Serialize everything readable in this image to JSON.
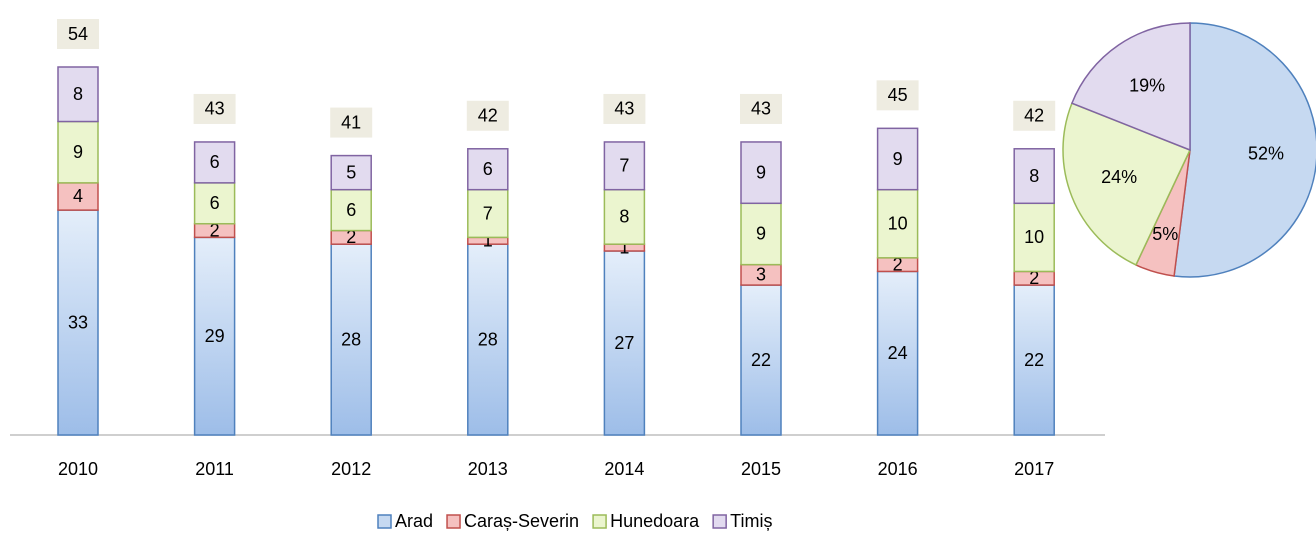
{
  "chart_data": [
    {
      "type": "stacked-bar",
      "categories": [
        "2010",
        "2011",
        "2012",
        "2013",
        "2014",
        "2015",
        "2016",
        "2017"
      ],
      "series": [
        {
          "name": "Arad",
          "color": "#c6d9f1",
          "stroke": "#4f81bd",
          "values": [
            33,
            29,
            28,
            28,
            27,
            22,
            24,
            22
          ]
        },
        {
          "name": "Caraș-Severin",
          "color": "#f5c1c0",
          "stroke": "#c0504d",
          "values": [
            4,
            2,
            2,
            1,
            1,
            3,
            2,
            2
          ]
        },
        {
          "name": "Hunedoara",
          "color": "#ebf5cf",
          "stroke": "#9bbb59",
          "values": [
            9,
            6,
            6,
            7,
            8,
            9,
            10,
            10
          ]
        },
        {
          "name": "Timiș",
          "color": "#e2dbef",
          "stroke": "#8064a2",
          "values": [
            8,
            6,
            5,
            6,
            7,
            9,
            9,
            8
          ]
        }
      ],
      "totals": [
        54,
        43,
        41,
        42,
        43,
        43,
        45,
        42
      ],
      "legend": "bottom"
    },
    {
      "type": "pie",
      "values": [
        52,
        5,
        24,
        19
      ],
      "value_labels": [
        "52%",
        "5%",
        "24%",
        "19%"
      ],
      "colors": [
        "#c6d9f1",
        "#f5c1c0",
        "#ebf5cf",
        "#e2dbef"
      ],
      "strokes": [
        "#4f81bd",
        "#c0504d",
        "#9bbb59",
        "#8064a2"
      ]
    }
  ]
}
